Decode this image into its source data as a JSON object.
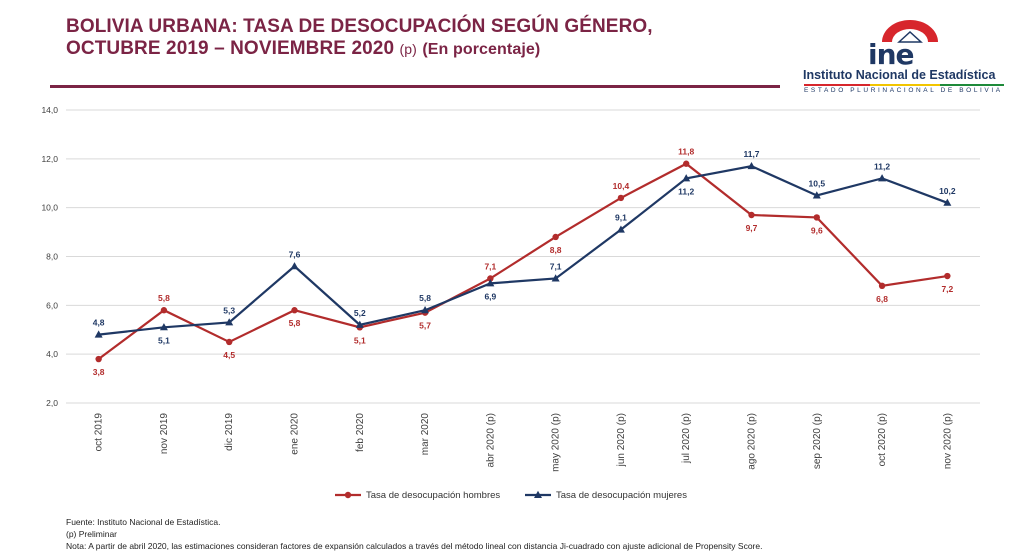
{
  "header": {
    "title_line1": "BOLIVIA URBANA: TASA DE DESOCUPACIÓN SEGÚN GÉNERO,",
    "title_line2": "OCTUBRE 2019 – NOVIEMBRE 2020",
    "title_mark": "(p)",
    "title_unit": "(En porcentaje)"
  },
  "logo": {
    "acronym": "ine",
    "name": "Instituto Nacional de Estadística",
    "subtitle": "ESTADO PLURINACIONAL DE BOLIVIA"
  },
  "chart_data": {
    "type": "line",
    "categories": [
      "oct 2019",
      "nov 2019",
      "dic 2019",
      "ene 2020",
      "feb 2020",
      "mar 2020",
      "abr 2020 (p)",
      "may 2020 (p)",
      "jun 2020 (p)",
      "jul 2020 (p)",
      "ago 2020 (p)",
      "sep 2020 (p)",
      "oct 2020 (p)",
      "nov 2020 (p)"
    ],
    "series": [
      {
        "name": "Tasa de desocupación hombres",
        "color": "#b22c2c",
        "marker": "circle",
        "values": [
          3.8,
          5.8,
          4.5,
          5.8,
          5.1,
          5.7,
          7.1,
          8.8,
          10.4,
          11.8,
          9.7,
          9.6,
          6.8,
          7.2
        ],
        "labels": [
          "3,8",
          "5,8",
          "4,5",
          "5,8",
          "5,1",
          "5,7",
          "7,1",
          "8,8",
          "10,4",
          "11,8",
          "9,7",
          "9,6",
          "6,8",
          "7,2"
        ]
      },
      {
        "name": "Tasa de desocupación mujeres",
        "color": "#1f3864",
        "marker": "triangle",
        "values": [
          4.8,
          5.1,
          5.3,
          7.6,
          5.2,
          5.8,
          6.9,
          7.1,
          9.1,
          11.2,
          11.7,
          10.5,
          11.2,
          10.2
        ],
        "labels": [
          "4,8",
          "5,1",
          "5,3",
          "7,6",
          "5,2",
          "5,8",
          "6,9",
          "7,1",
          "9,1",
          "11,2",
          "11,7",
          "10,5",
          "11,2",
          "10,2"
        ]
      }
    ],
    "ylim": [
      2,
      14
    ],
    "yticks": [
      "2,0",
      "4,0",
      "6,0",
      "8,0",
      "10,0",
      "12,0",
      "14,0"
    ],
    "grid": true,
    "legend": "bottom"
  },
  "footer": {
    "source": "Fuente: Instituto Nacional de Estadística.",
    "prelim": "(p) Preliminar",
    "note": "Nota: A partir de abril 2020, las estimaciones consideran factores de expansión calculados a través del método lineal con distancia Ji-cuadrado con ajuste adicional de Propensity Score."
  }
}
